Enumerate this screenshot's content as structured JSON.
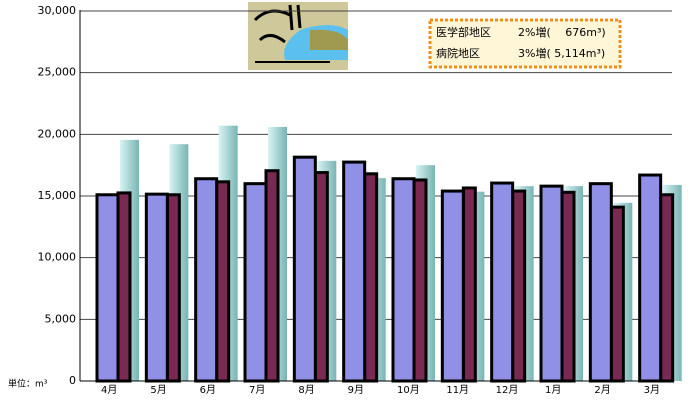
{
  "chart_data": {
    "type": "bar",
    "categories": [
      "4月",
      "5月",
      "6月",
      "7月",
      "8月",
      "9月",
      "10月",
      "11月",
      "12月",
      "1月",
      "2月",
      "3月"
    ],
    "series": [
      {
        "color": "#9090e6",
        "values": [
          15100,
          15150,
          16400,
          16000,
          18150,
          17750,
          16400,
          15400,
          16050,
          15800,
          16000,
          16700
        ]
      },
      {
        "color": "#7a2a52",
        "values": [
          15250,
          15100,
          16150,
          17050,
          16900,
          16800,
          16300,
          15650,
          15400,
          15300,
          14100,
          15100
        ]
      },
      {
        "color": "#a8dcdc",
        "values": [
          19550,
          19200,
          20700,
          20600,
          17850,
          16450,
          17500,
          15350,
          15800,
          15800,
          14450,
          15900
        ]
      }
    ],
    "ylim": [
      0,
      30000
    ],
    "yticks": [
      0,
      {
        "value": 5000,
        "label": "5,000"
      },
      {
        "value": 10000,
        "label": "10,000"
      },
      {
        "value": 15000,
        "label": "15,000"
      },
      {
        "value": 20000,
        "label": "20,000"
      },
      {
        "value": 25000,
        "label": "25,000"
      },
      {
        "value": 30000,
        "label": "30,000"
      }
    ],
    "grid": true,
    "unit_label": "単位：m³",
    "annotation": [
      {
        "area": "医学部地区",
        "change": "2%増(　 676m³)"
      },
      {
        "area": "病院地区",
        "change": "3%増( 5,114m³)"
      }
    ]
  }
}
